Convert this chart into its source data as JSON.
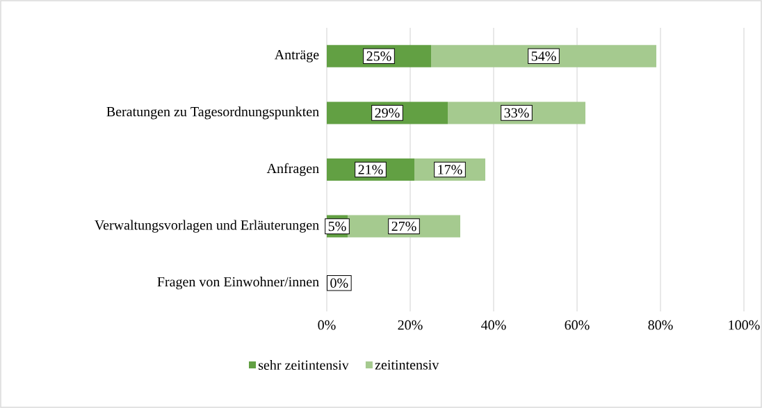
{
  "chart_data": {
    "type": "bar",
    "orientation": "horizontal",
    "stacked": true,
    "categories": [
      "Anträge",
      "Beratungen zu Tagesordnungspunkten",
      "Anfragen",
      "Verwaltungsvorlagen und Erläuterungen",
      "Fragen von Einwohner/innen"
    ],
    "series": [
      {
        "name": "sehr zeitintensiv",
        "color": "#62a043",
        "values": [
          25,
          29,
          21,
          5,
          0
        ],
        "value_labels": [
          "25%",
          "29%",
          "21%",
          "5%",
          "0%"
        ]
      },
      {
        "name": "zeitintensiv",
        "color": "#a5ca8f",
        "values": [
          54,
          33,
          17,
          27,
          0
        ],
        "value_labels": [
          "54%",
          "33%",
          "17%",
          "27%",
          null
        ]
      }
    ],
    "xlim": [
      0,
      100
    ],
    "xticks": [
      {
        "value": 0,
        "label": "0%"
      },
      {
        "value": 20,
        "label": "20%"
      },
      {
        "value": 40,
        "label": "40%"
      },
      {
        "value": 60,
        "label": "60%"
      },
      {
        "value": 80,
        "label": "80%"
      },
      {
        "value": 100,
        "label": "100%"
      }
    ],
    "grid": "x",
    "legend": "bottom"
  }
}
